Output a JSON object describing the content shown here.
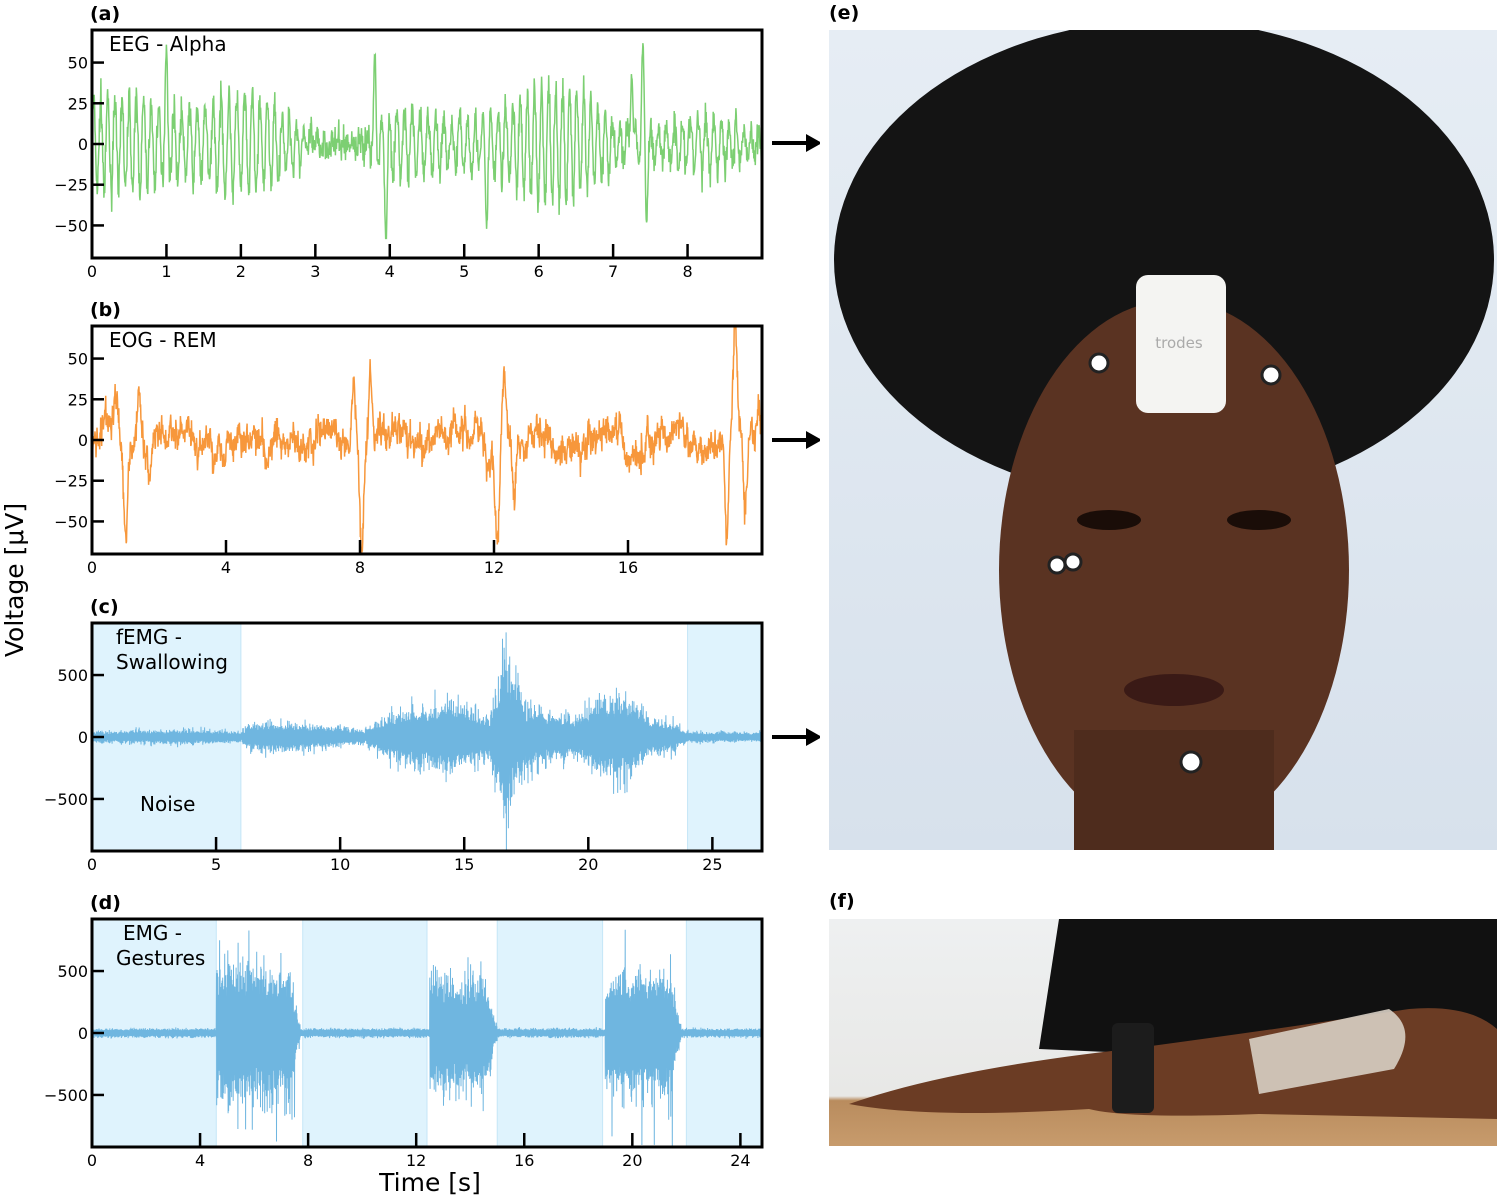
{
  "figure": {
    "ylabel": "Voltage [μV]",
    "xlabel": "Time [s]",
    "colors": {
      "eeg": "#7ccf72",
      "eog": "#f7973b",
      "emg": "#6fb6e0",
      "shade": "#dff3fd",
      "axes": "#000000"
    }
  },
  "chart_data": [
    {
      "panel": "(a)",
      "type": "line",
      "annotation": "EEG - Alpha",
      "xlim": [
        0,
        9
      ],
      "ylim": [
        -70,
        70
      ],
      "xticks": [
        0,
        1,
        2,
        3,
        4,
        5,
        6,
        7,
        8
      ],
      "yticks": [
        50,
        25,
        0,
        -25,
        -50
      ],
      "ytick_labels": [
        "50",
        "25",
        "0",
        "−25",
        "−50"
      ],
      "signal": {
        "dominant_frequency_hz": 10,
        "typical_amplitude": 25,
        "peaks": [
          [
            1.0,
            52
          ],
          [
            3.8,
            52
          ],
          [
            7.25,
            48
          ],
          [
            7.4,
            60
          ],
          [
            3.95,
            -55
          ],
          [
            5.3,
            -45
          ],
          [
            7.45,
            -45
          ]
        ]
      },
      "color": "#7ccf72",
      "grid": false
    },
    {
      "panel": "(b)",
      "type": "line",
      "annotation": "EOG - REM",
      "xlim": [
        0,
        20
      ],
      "ylim": [
        -70,
        70
      ],
      "xticks": [
        0,
        4,
        8,
        12,
        16
      ],
      "yticks": [
        50,
        25,
        0,
        -25,
        -50
      ],
      "ytick_labels": [
        "50",
        "25",
        "0",
        "−25",
        "−50"
      ],
      "signal": {
        "baseline_noise": 8,
        "events": [
          [
            0.7,
            22
          ],
          [
            1.0,
            -52
          ],
          [
            1.4,
            40
          ],
          [
            1.7,
            -18
          ],
          [
            7.8,
            44
          ],
          [
            8.05,
            -68
          ],
          [
            8.3,
            43
          ],
          [
            12.1,
            -57
          ],
          [
            12.3,
            42
          ],
          [
            12.6,
            -43
          ],
          [
            18.95,
            -58
          ],
          [
            19.2,
            65
          ],
          [
            19.5,
            -43
          ],
          [
            19.9,
            22
          ]
        ]
      },
      "color": "#f7973b",
      "grid": false
    },
    {
      "panel": "(c)",
      "type": "line",
      "annotation": "fEMG -\nSwallowing",
      "annotation_lines": [
        "fEMG -",
        "Swallowing"
      ],
      "region_label": "Noise",
      "xlim": [
        0,
        27
      ],
      "ylim": [
        -920,
        920
      ],
      "xticks": [
        0,
        5,
        10,
        15,
        20,
        25
      ],
      "yticks": [
        500,
        0,
        -500
      ],
      "ytick_labels": [
        "500",
        "0",
        "−500"
      ],
      "shaded_regions": [
        [
          0,
          6
        ],
        [
          24,
          27
        ]
      ],
      "signal": {
        "envelope": [
          [
            0,
            60
          ],
          [
            3.5,
            80
          ],
          [
            6,
            60
          ],
          [
            6.5,
            150
          ],
          [
            8,
            150
          ],
          [
            11,
            80
          ],
          [
            12,
            250
          ],
          [
            14.5,
            400
          ],
          [
            16,
            200
          ],
          [
            16.6,
            900
          ],
          [
            17.5,
            350
          ],
          [
            19.5,
            200
          ],
          [
            20.5,
            450
          ],
          [
            21.5,
            450
          ],
          [
            22.5,
            200
          ],
          [
            23.5,
            150
          ],
          [
            24,
            60
          ],
          [
            27,
            50
          ]
        ]
      },
      "color": "#6fb6e0",
      "grid": false
    },
    {
      "panel": "(d)",
      "type": "line",
      "annotation": "EMG -\nGestures",
      "annotation_lines": [
        "EMG -",
        "Gestures"
      ],
      "xlim": [
        0,
        24.8
      ],
      "ylim": [
        -920,
        920
      ],
      "xticks": [
        0,
        4,
        8,
        12,
        16,
        20,
        24
      ],
      "yticks": [
        500,
        0,
        -500
      ],
      "ytick_labels": [
        "500",
        "0",
        "−500"
      ],
      "shaded_regions": [
        [
          0,
          4.6
        ],
        [
          7.8,
          12.4
        ],
        [
          15,
          18.9
        ],
        [
          22,
          24.8
        ]
      ],
      "signal": {
        "baseline_noise": 20,
        "bursts": [
          [
            4.6,
            7.7,
            550,
            920
          ],
          [
            12.5,
            15.0,
            450,
            700
          ],
          [
            19.0,
            21.8,
            500,
            920
          ]
        ]
      },
      "color": "#6fb6e0",
      "grid": false
    }
  ],
  "photos": [
    {
      "panel": "(e)",
      "subject": "face with forehead electrode device",
      "logo_text": "trodes"
    },
    {
      "panel": "(f)",
      "subject": "forearm with printed electrode patch"
    }
  ]
}
